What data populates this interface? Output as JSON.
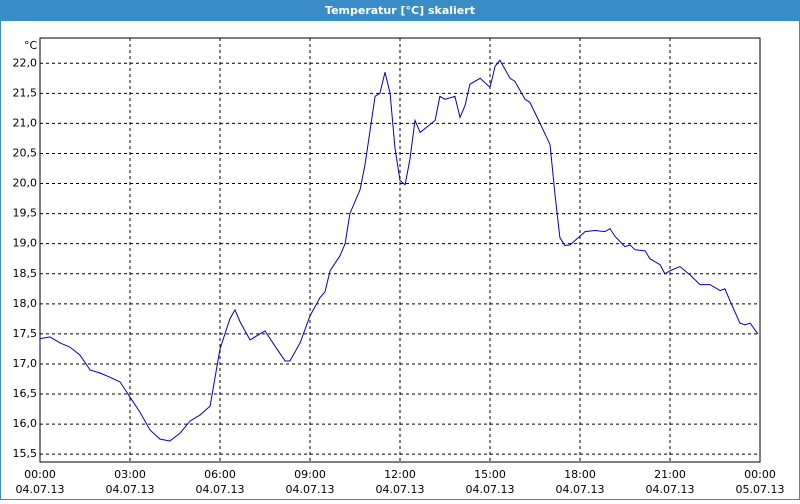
{
  "window": {
    "title": "Temperatur [°C] skaliert"
  },
  "chart_data": {
    "type": "line",
    "unit_label": "°C",
    "color": "#0000c0",
    "grid": true,
    "xlim": [
      0,
      24
    ],
    "ylim": [
      15.37,
      22.42
    ],
    "xticks": [
      {
        "value": 0,
        "label": "00:00"
      },
      {
        "value": 3,
        "label": "03:00"
      },
      {
        "value": 6,
        "label": "06:00"
      },
      {
        "value": 9,
        "label": "09:00"
      },
      {
        "value": 12,
        "label": "12:00"
      },
      {
        "value": 15,
        "label": "15:00"
      },
      {
        "value": 18,
        "label": "18:00"
      },
      {
        "value": 21,
        "label": "21:00"
      },
      {
        "value": 24,
        "label": "00:00"
      }
    ],
    "xtick_dates": [
      "04.07.13",
      "04.07.13",
      "04.07.13",
      "04.07.13",
      "04.07.13",
      "04.07.13",
      "04.07.13",
      "04.07.13",
      "05.07.13"
    ],
    "yticks": [
      {
        "value": 15.5,
        "label": "15,5"
      },
      {
        "value": 16,
        "label": "16,0"
      },
      {
        "value": 16.5,
        "label": "16,5"
      },
      {
        "value": 17,
        "label": "17,0"
      },
      {
        "value": 17.5,
        "label": "17,5"
      },
      {
        "value": 18,
        "label": "18,0"
      },
      {
        "value": 18.5,
        "label": "18,5"
      },
      {
        "value": 19,
        "label": "19,0"
      },
      {
        "value": 19.5,
        "label": "19,5"
      },
      {
        "value": 20,
        "label": "20,0"
      },
      {
        "value": 20.5,
        "label": "20,5"
      },
      {
        "value": 21,
        "label": "21,0"
      },
      {
        "value": 21.5,
        "label": "21,5"
      },
      {
        "value": 22,
        "label": "22,0"
      }
    ],
    "x": [
      0,
      0.33,
      0.67,
      1,
      1.33,
      1.67,
      2,
      2.33,
      2.67,
      3,
      3.33,
      3.67,
      4,
      4.33,
      4.67,
      5,
      5.33,
      5.67,
      6,
      6.33,
      6.5,
      6.67,
      7,
      7.33,
      7.5,
      7.83,
      8.17,
      8.33,
      8.67,
      9,
      9.33,
      9.5,
      9.67,
      10,
      10.17,
      10.33,
      10.67,
      10.83,
      11.17,
      11.33,
      11.5,
      11.67,
      11.83,
      12,
      12.17,
      12.33,
      12.5,
      12.67,
      13,
      13.17,
      13.33,
      13.5,
      13.83,
      14,
      14.17,
      14.33,
      14.67,
      15,
      15.17,
      15.33,
      15.67,
      15.83,
      16.17,
      16.33,
      16.67,
      17,
      17.17,
      17.33,
      17.5,
      17.67,
      17.83,
      18.17,
      18.5,
      18.83,
      19,
      19.17,
      19.5,
      19.67,
      19.83,
      20.17,
      20.33,
      20.67,
      20.83,
      21,
      21.33,
      21.67,
      22,
      22.33,
      22.67,
      22.83,
      23,
      23.33,
      23.5,
      23.67,
      23.93
    ],
    "values": [
      17.42,
      17.45,
      17.35,
      17.28,
      17.15,
      16.9,
      16.85,
      16.78,
      16.7,
      16.45,
      16.2,
      15.9,
      15.75,
      15.72,
      15.85,
      16.05,
      16.15,
      16.3,
      17.25,
      17.75,
      17.9,
      17.7,
      17.4,
      17.5,
      17.55,
      17.3,
      17.05,
      17.05,
      17.35,
      17.8,
      18.1,
      18.2,
      18.55,
      18.8,
      19.0,
      19.5,
      19.9,
      20.3,
      21.45,
      21.5,
      21.85,
      21.5,
      20.6,
      20.05,
      19.98,
      20.4,
      21.05,
      20.85,
      20.98,
      21.05,
      21.45,
      21.4,
      21.45,
      21.1,
      21.3,
      21.65,
      21.75,
      21.6,
      21.95,
      22.05,
      21.75,
      21.7,
      21.4,
      21.35,
      21.0,
      20.65,
      19.8,
      19.1,
      18.97,
      18.98,
      19.05,
      19.2,
      19.22,
      19.2,
      19.25,
      19.12,
      18.95,
      18.98,
      18.9,
      18.88,
      18.75,
      18.65,
      18.5,
      18.55,
      18.62,
      18.48,
      18.32,
      18.32,
      18.22,
      18.25,
      18.05,
      17.68,
      17.65,
      17.68,
      17.5
    ]
  }
}
